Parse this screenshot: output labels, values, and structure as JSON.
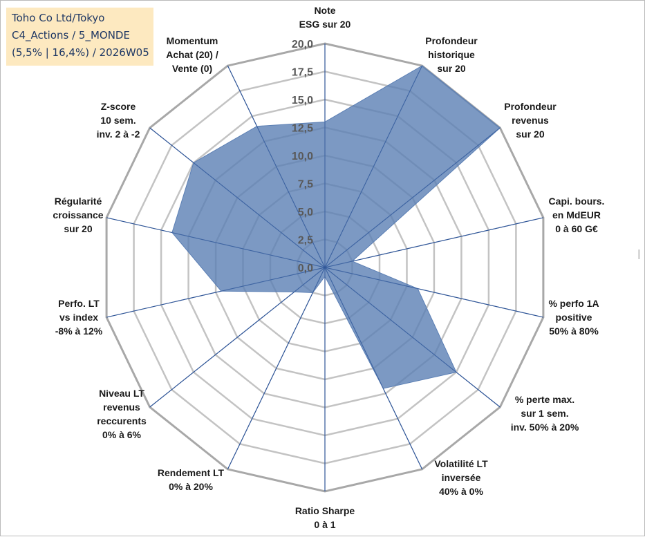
{
  "info_box": {
    "line1": "Toho Co Ltd/Tokyo",
    "line2": "C4_Actions / 5_MONDE",
    "line3": "(5,5% | 16,4%) / 2026W05",
    "background": "#fde9c0",
    "text_color": "#1f3864"
  },
  "chart_data": {
    "type": "radar",
    "title": "",
    "range": [
      0,
      20
    ],
    "ticks": [
      "0,0",
      "2,5",
      "5,0",
      "7,5",
      "10,0",
      "12,5",
      "15,0",
      "17,5",
      "20,0"
    ],
    "tick_values": [
      0,
      2.5,
      5,
      7.5,
      10,
      12.5,
      15,
      17.5,
      20
    ],
    "axes": [
      {
        "label": [
          "Note",
          "ESG sur 20"
        ],
        "value": 13.0
      },
      {
        "label": [
          "Profondeur",
          "historique",
          "sur 20"
        ],
        "value": 20.0
      },
      {
        "label": [
          "Profondeur",
          "revenus",
          "sur 20"
        ],
        "value": 20.0
      },
      {
        "label": [
          "Capi. bours.",
          "en MdEUR",
          "0 à 60 G€"
        ],
        "value": 2.5
      },
      {
        "label": [
          "% perfo 1A",
          "positive",
          "50% à 80%"
        ],
        "value": 8.5
      },
      {
        "label": [
          "% perte max.",
          "sur 1 sem.",
          "inv. 50% à 20%"
        ],
        "value": 15.0
      },
      {
        "label": [
          "Volatilité LT",
          "inversée",
          "40% à 0%"
        ],
        "value": 12.0
      },
      {
        "label": [
          "Ratio Sharpe",
          "0 à 1"
        ],
        "value": 0.8
      },
      {
        "label": [
          "Rendement LT",
          "0% à 20%"
        ],
        "value": 2.5
      },
      {
        "label": [
          "Niveau LT",
          "revenus",
          "reccurents",
          "0% à 6%"
        ],
        "value": 3.5
      },
      {
        "label": [
          "Perfo. LT",
          "vs index",
          "-8% à 12%"
        ],
        "value": 9.5
      },
      {
        "label": [
          "Régularité",
          "croissance",
          "sur 20"
        ],
        "value": 14.0
      },
      {
        "label": [
          "Z-score",
          "10 sem.",
          "inv. 2 à -2"
        ],
        "value": 15.0
      },
      {
        "label": [
          "Momentum",
          "Achat (20) /",
          "Vente (0)"
        ],
        "value": 14.0
      }
    ],
    "grid": true,
    "legend": "none",
    "colors": {
      "fill": "#5b7fb4",
      "fill_opacity": 0.8,
      "spoke": "#2f5597",
      "ring": "#c3c3c3",
      "outer_ring": "#a8a8a8"
    }
  }
}
